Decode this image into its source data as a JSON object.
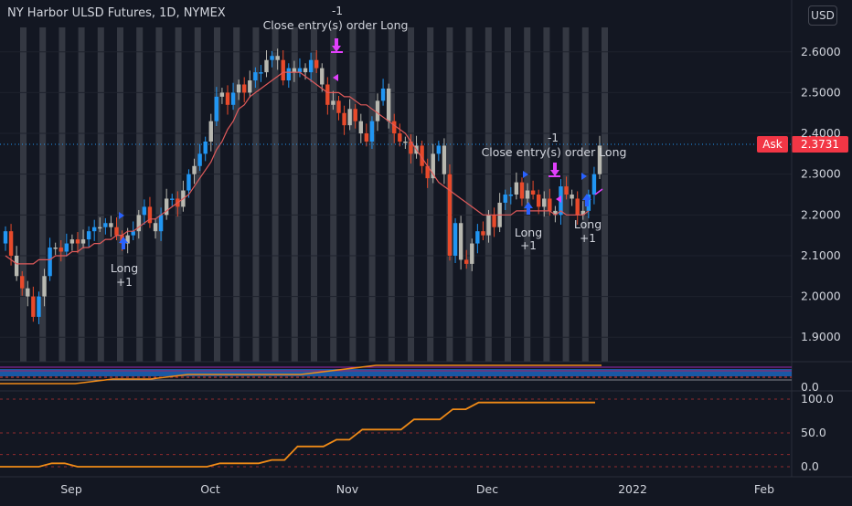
{
  "header": {
    "title": "NY Harbor ULSD Futures, 1D, NYMEX",
    "currency_button": "USD"
  },
  "colors": {
    "background": "#131722",
    "bull_candle": "#2196f3",
    "bear_candle": "#e84a2b",
    "neutral_candle": "#b8b8b0",
    "moving_average": "#e05a5a",
    "session_bands": "#787b86",
    "ask_label": "#f23645",
    "long_marker": "#2962ff",
    "close_marker": "#e040fb",
    "equity_line": "#ef8a17"
  },
  "chart_data": [
    {
      "type": "candlestick",
      "x_axis": {
        "ticks": [
          "Sep",
          "Oct",
          "Nov",
          "Dec",
          "2022",
          "Feb"
        ]
      },
      "y_axis": {
        "ticks": [
          "2.6000",
          "2.5000",
          "2.4000",
          "2.3000",
          "2.2000",
          "2.1000",
          "2.0000",
          "1.9000"
        ],
        "range": [
          1.84,
          2.66
        ]
      },
      "ask": {
        "label": "Ask",
        "value": 2.3731,
        "value_text": "2.3731"
      },
      "series": [
        {
          "name": "",
          "values": [
            2.16,
            2.1,
            2.05,
            2.02,
            2.0,
            1.95,
            2.0,
            2.05,
            2.12,
            2.12,
            2.11,
            2.13,
            2.14,
            2.13,
            2.14,
            2.16,
            2.17,
            2.17,
            2.18,
            2.17,
            2.15,
            2.13,
            2.15,
            2.16,
            2.2,
            2.22,
            2.18,
            2.16,
            2.2,
            2.24,
            2.24,
            2.22,
            2.26,
            2.3,
            2.32,
            2.35,
            2.38,
            2.43,
            2.49,
            2.5,
            2.47,
            2.5,
            2.52,
            2.5,
            2.53,
            2.55,
            2.55,
            2.58,
            2.59,
            2.58,
            2.53,
            2.56,
            2.55,
            2.56,
            2.55,
            2.58,
            2.56,
            2.52,
            2.47,
            2.48,
            2.45,
            2.42,
            2.46,
            2.43,
            2.4,
            2.38,
            2.43,
            2.48,
            2.51,
            2.43,
            2.4,
            2.38,
            2.38,
            2.35,
            2.37,
            2.32,
            2.29,
            2.35,
            2.37,
            2.3,
            2.1,
            2.18,
            2.09,
            2.08,
            2.13,
            2.16,
            2.15,
            2.2,
            2.17,
            2.23,
            2.25,
            2.25,
            2.28,
            2.24,
            2.26,
            2.25,
            2.22,
            2.24,
            2.21,
            2.2,
            2.27,
            2.25,
            2.24,
            2.2,
            2.21,
            2.25,
            2.3,
            2.37
          ]
        },
        {
          "name": "",
          "values": [
            2.1,
            2.09,
            2.08,
            2.08,
            2.08,
            2.08,
            2.09,
            2.09,
            2.09,
            2.1,
            2.1,
            2.1,
            2.11,
            2.11,
            2.12,
            2.12,
            2.13,
            2.13,
            2.14,
            2.14,
            2.15,
            2.15,
            2.16,
            2.16,
            2.17,
            2.18,
            2.19,
            2.19,
            2.2,
            2.21,
            2.22,
            2.23,
            2.24,
            2.25,
            2.27,
            2.29,
            2.31,
            2.33,
            2.36,
            2.38,
            2.41,
            2.43,
            2.46,
            2.47,
            2.49,
            2.5,
            2.51,
            2.52,
            2.53,
            2.54,
            2.55,
            2.55,
            2.55,
            2.55,
            2.54,
            2.53,
            2.52,
            2.51,
            2.5,
            2.5,
            2.5,
            2.49,
            2.49,
            2.48,
            2.47,
            2.47,
            2.46,
            2.45,
            2.44,
            2.43,
            2.42,
            2.41,
            2.4,
            2.38,
            2.36,
            2.34,
            2.32,
            2.3,
            2.28,
            2.27,
            2.26,
            2.25,
            2.24,
            2.23,
            2.22,
            2.21,
            2.2,
            2.2,
            2.2,
            2.2,
            2.2,
            2.2,
            2.21,
            2.21,
            2.21,
            2.21,
            2.21,
            2.21,
            2.21,
            2.2,
            2.21,
            2.2,
            2.2,
            2.2,
            2.2,
            2.21
          ]
        }
      ],
      "annotations": [
        {
          "lines": [
            "Close entry(s) order Long",
            "-1"
          ],
          "kind": "close"
        },
        {
          "lines": [
            "Close entry(s) order Long",
            "-1"
          ],
          "kind": "close"
        },
        {
          "lines": [
            "Long",
            "+1"
          ],
          "kind": "long"
        },
        {
          "lines": [
            "Long",
            "+1"
          ],
          "kind": "long"
        },
        {
          "lines": [
            "Long",
            "+1"
          ],
          "kind": "long"
        }
      ]
    },
    {
      "type": "line",
      "y_axis": {
        "ticks": [
          "0.0"
        ]
      },
      "series": [
        {
          "name": "",
          "values": [
            0,
            0,
            0,
            0.5,
            0.5,
            1,
            1,
            1,
            1,
            1.5,
            2,
            2,
            2,
            2,
            2,
            2,
            2
          ]
        },
        {
          "name": "",
          "values": [
            1,
            1,
            1,
            1,
            1,
            1,
            1,
            1,
            1,
            1,
            1,
            1,
            1,
            1,
            1,
            1,
            1
          ]
        }
      ]
    },
    {
      "type": "line",
      "y_axis": {
        "ticks": [
          "100.0",
          "50.0",
          "0.0"
        ],
        "range": [
          0,
          100
        ]
      },
      "series": [
        {
          "name": "",
          "values": [
            0,
            0,
            0,
            0,
            5,
            5,
            0,
            0,
            0,
            0,
            0,
            0,
            0,
            0,
            0,
            0,
            0,
            5,
            5,
            5,
            5,
            10,
            10,
            30,
            30,
            30,
            40,
            40,
            55,
            55,
            55,
            55,
            70,
            70,
            70,
            85,
            85,
            95,
            95,
            95,
            95,
            95,
            95,
            95,
            95,
            95,
            95
          ]
        }
      ]
    }
  ]
}
